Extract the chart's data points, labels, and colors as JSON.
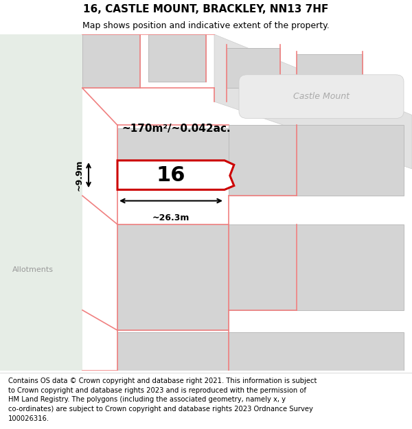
{
  "title": "16, CASTLE MOUNT, BRACKLEY, NN13 7HF",
  "subtitle": "Map shows position and indicative extent of the property.",
  "footer_text": "Contains OS data © Crown copyright and database right 2021. This information is subject\nto Crown copyright and database rights 2023 and is reproduced with the permission of\nHM Land Registry. The polygons (including the associated geometry, namely x, y\nco-ordinates) are subject to Crown copyright and database rights 2023 Ordnance Survey\n100026316.",
  "area_label": "~170m²/~0.042ac.",
  "width_label": "~26.3m",
  "height_label": "~9.9m",
  "number_label": "16",
  "road_label": "Castle Mount",
  "allotments_label": "Allotments",
  "map_bg": "#ffffff",
  "left_bg": "#e8efe8",
  "plot_edge": "#cc0000",
  "pink_line": "#f08080",
  "building_fill": "#d4d4d4",
  "building_edge": "#bbbbbb",
  "road_fill": "#e2e2e2",
  "title_fontsize": 11,
  "subtitle_fontsize": 9,
  "footer_fontsize": 7.2
}
